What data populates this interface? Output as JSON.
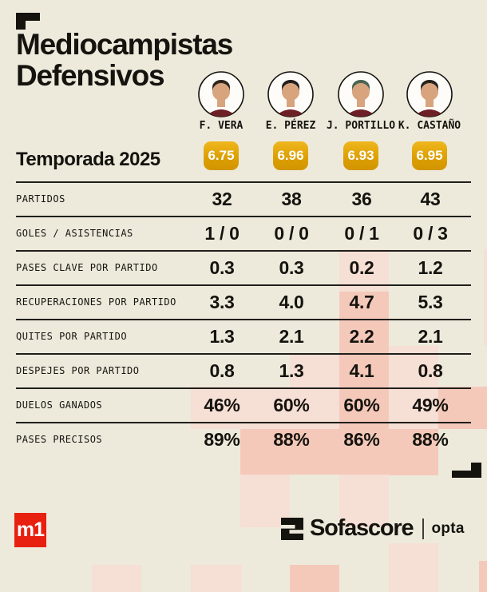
{
  "header": {
    "title_line1": "Mediocampistas",
    "title_line2": "Defensivos",
    "season_label": "Temporada 2025"
  },
  "players": [
    {
      "name": "F. VERA",
      "rating": "6.75"
    },
    {
      "name": "E. PÉREZ",
      "rating": "6.96"
    },
    {
      "name": "J. PORTILLO",
      "rating": "6.93"
    },
    {
      "name": "K. CASTAÑO",
      "rating": "6.95"
    }
  ],
  "table": {
    "rows": [
      {
        "label": "PARTIDOS",
        "values": [
          "32",
          "38",
          "36",
          "43"
        ]
      },
      {
        "label": "GOLES / ASISTENCIAS",
        "values": [
          "1 / 0",
          "0 / 0",
          "0 / 1",
          "0 / 3"
        ]
      },
      {
        "label": "PASES CLAVE POR PARTIDO",
        "values": [
          "0.3",
          "0.3",
          "0.2",
          "1.2"
        ]
      },
      {
        "label": "RECUPERACIONES POR PARTIDO",
        "values": [
          "3.3",
          "4.0",
          "4.7",
          "5.3"
        ]
      },
      {
        "label": "QUITES POR PARTIDO",
        "values": [
          "1.3",
          "2.1",
          "2.2",
          "2.1"
        ]
      },
      {
        "label": "DESPEJES POR PARTIDO",
        "values": [
          "0.8",
          "1.3",
          "4.1",
          "0.8"
        ]
      },
      {
        "label": "DUELOS GANADOS",
        "values": [
          "46%",
          "60%",
          "60%",
          "49%"
        ]
      },
      {
        "label": "PASES PRECISOS",
        "values": [
          "89%",
          "88%",
          "86%",
          "88%"
        ]
      }
    ]
  },
  "footer": {
    "m1_label": "m1",
    "sofascore_label": "Sofascore",
    "opta_label": "opta"
  },
  "colors": {
    "background": "#EDEADC",
    "ink": "#15130E",
    "rating_badge_gold": "#E2A60C",
    "brand_red": "#E8200F",
    "pattern_light": "#F6DFD5",
    "pattern_medium": "#F4C9BA"
  },
  "chart_data": {
    "type": "table",
    "title": "Mediocampistas Defensivos",
    "subtitle": "Temporada 2025",
    "columns": [
      "F. VERA",
      "E. PÉREZ",
      "J. PORTILLO",
      "K. CASTAÑO"
    ],
    "ratings": [
      6.75,
      6.96,
      6.93,
      6.95
    ],
    "rows": [
      {
        "label": "PARTIDOS",
        "values": [
          32,
          38,
          36,
          43
        ]
      },
      {
        "label": "GOLES / ASISTENCIAS",
        "values": [
          "1/0",
          "0/0",
          "0/1",
          "0/3"
        ]
      },
      {
        "label": "PASES CLAVE POR PARTIDO",
        "values": [
          0.3,
          0.3,
          0.2,
          1.2
        ]
      },
      {
        "label": "RECUPERACIONES POR PARTIDO",
        "values": [
          3.3,
          4.0,
          4.7,
          5.3
        ]
      },
      {
        "label": "QUITES POR PARTIDO",
        "values": [
          1.3,
          2.1,
          2.2,
          2.1
        ]
      },
      {
        "label": "DESPEJES POR PARTIDO",
        "values": [
          0.8,
          1.3,
          4.1,
          0.8
        ]
      },
      {
        "label": "DUELOS GANADOS",
        "values": [
          "46%",
          "60%",
          "60%",
          "49%"
        ]
      },
      {
        "label": "PASES PRECISOS",
        "values": [
          "89%",
          "88%",
          "86%",
          "88%"
        ]
      }
    ]
  }
}
